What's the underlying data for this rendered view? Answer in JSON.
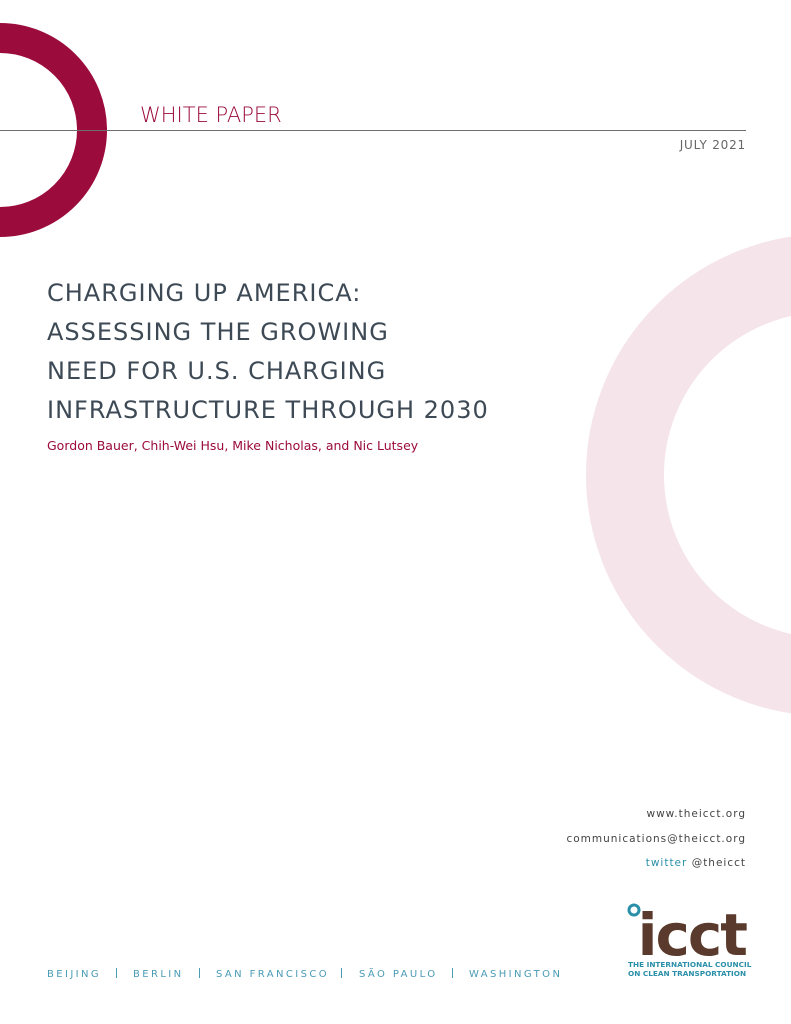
{
  "header": {
    "label": "WHITE PAPER",
    "date": "JULY 2021"
  },
  "title": {
    "lines": [
      "CHARGING UP AMERICA:",
      "ASSESSING THE GROWING",
      "NEED FOR U.S. CHARGING",
      "INFRASTRUCTURE THROUGH 2030"
    ]
  },
  "authors": "Gordon Bauer, Chih-Wei Hsu, Mike Nicholas, and Nic Lutsey",
  "contact": {
    "website": "www.theicct.org",
    "email": "communications@theicct.org",
    "twitter_label": "twitter",
    "twitter_handle": "@theicct"
  },
  "logo": {
    "mark": "icct",
    "lines": [
      "THE INTERNATIONAL COUNCIL",
      "ON CLEAN TRANSPORTATION"
    ]
  },
  "offices": [
    "BEIJING",
    "BERLIN",
    "SAN FRANCISCO",
    "SÃO PAULO",
    "WASHINGTON"
  ]
}
